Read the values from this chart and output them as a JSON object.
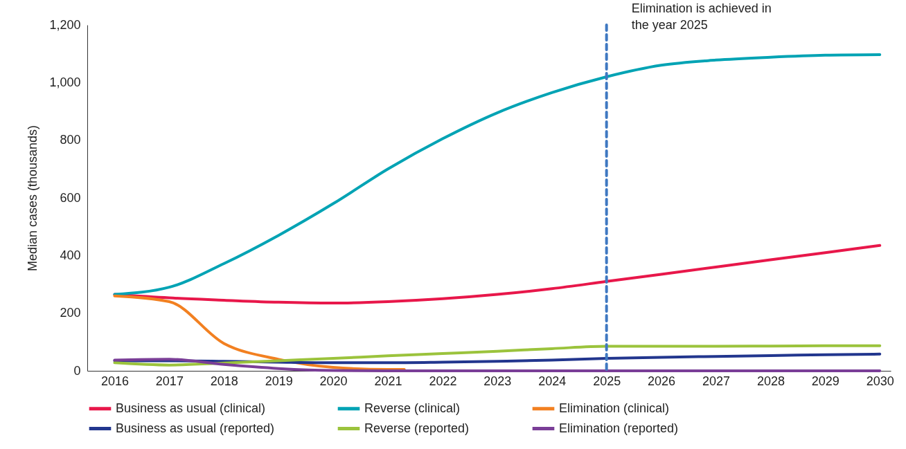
{
  "chart_data": {
    "type": "line",
    "ylabel": "Median cases (thousands)",
    "x": [
      2016,
      2017,
      2018,
      2019,
      2020,
      2021,
      2022,
      2023,
      2024,
      2025,
      2026,
      2027,
      2028,
      2029,
      2030
    ],
    "xlim": [
      2015.5,
      2030.2
    ],
    "xticks": [
      2016,
      2017,
      2018,
      2019,
      2020,
      2021,
      2022,
      2023,
      2024,
      2025,
      2026,
      2027,
      2028,
      2029,
      2030
    ],
    "ylim": [
      0,
      1200
    ],
    "yticks": [
      0,
      200,
      400,
      600,
      800,
      {
        "value": 1000,
        "label": "1,000"
      },
      {
        "value": 1200,
        "label": "1,200"
      }
    ],
    "grid": false,
    "legend": "bottom",
    "line_style": "solid",
    "marker": "none",
    "series": [
      {
        "name": "Business as usual (clinical)",
        "color": "#e8174a",
        "values": [
          265,
          253,
          245,
          238,
          235,
          240,
          250,
          265,
          285,
          310,
          335,
          360,
          385,
          410,
          435
        ]
      },
      {
        "name": "Reverse (clinical)",
        "color": "#00a3b4",
        "values": [
          265,
          290,
          372,
          470,
          580,
          700,
          805,
          895,
          965,
          1020,
          1060,
          1078,
          1088,
          1095,
          1097
        ]
      },
      {
        "name": "Elimination (clinical)",
        "color": "#f28021",
        "x": [
          2016,
          2017,
          2018,
          2019,
          2020,
          2021,
          2021.3
        ],
        "values": [
          260,
          240,
          95,
          40,
          12,
          5,
          5
        ]
      },
      {
        "name": "Business as usual (reported)",
        "color": "#22368e",
        "values": [
          35,
          35,
          33,
          30,
          28,
          28,
          30,
          33,
          37,
          43,
          47,
          50,
          53,
          56,
          58
        ]
      },
      {
        "name": "Reverse (reported)",
        "color": "#9bc33c",
        "values": [
          28,
          20,
          27,
          35,
          43,
          52,
          60,
          68,
          77,
          85,
          85,
          85,
          86,
          87,
          87
        ]
      },
      {
        "name": "Elimination (reported)",
        "color": "#7a3e97",
        "values": [
          37,
          40,
          22,
          8,
          1,
          0,
          0,
          0,
          0,
          0,
          0,
          0,
          0,
          0,
          0
        ]
      }
    ],
    "ref_lines": [
      {
        "axis": "x",
        "value": 2025,
        "label": "Elimination is achieved in the year 2025",
        "color": "#3f78c1",
        "line_style": "dashed"
      }
    ]
  }
}
